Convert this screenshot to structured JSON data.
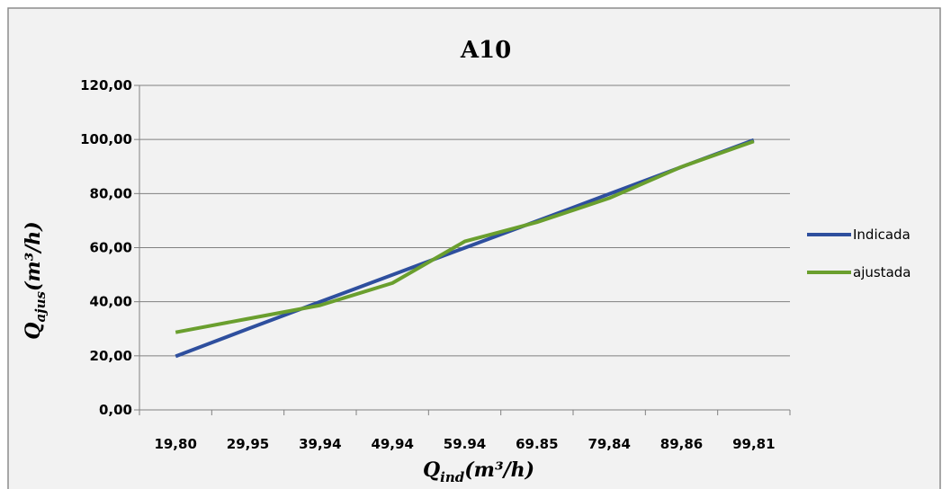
{
  "chart_data": {
    "type": "line",
    "title": "A10",
    "xlabel": {
      "base": "Q",
      "sub": "ind",
      "unit": "(m³/h)"
    },
    "ylabel": {
      "base": "Q",
      "sub": "ajus",
      "unit": "(m³/h)"
    },
    "categories": [
      "19,80",
      "29,95",
      "39,94",
      "49,94",
      "59.94",
      "69.85",
      "79,84",
      "89,86",
      "99,81"
    ],
    "yticks": [
      "0,00",
      "20,00",
      "40,00",
      "60,00",
      "80,00",
      "100,00",
      "120,00"
    ],
    "ylim": [
      0,
      120
    ],
    "grid": "horizontal",
    "legend_position": "right",
    "series": [
      {
        "name": "Indicada",
        "color": "#2e4f9e",
        "values": [
          19.8,
          29.95,
          39.94,
          49.94,
          59.94,
          69.85,
          79.84,
          89.86,
          99.81
        ]
      },
      {
        "name": "ajustada",
        "color": "#6a9f2e",
        "values": [
          28.7,
          33.7,
          38.7,
          46.9,
          62.3,
          69.4,
          78.3,
          89.9,
          99.3
        ]
      }
    ]
  }
}
